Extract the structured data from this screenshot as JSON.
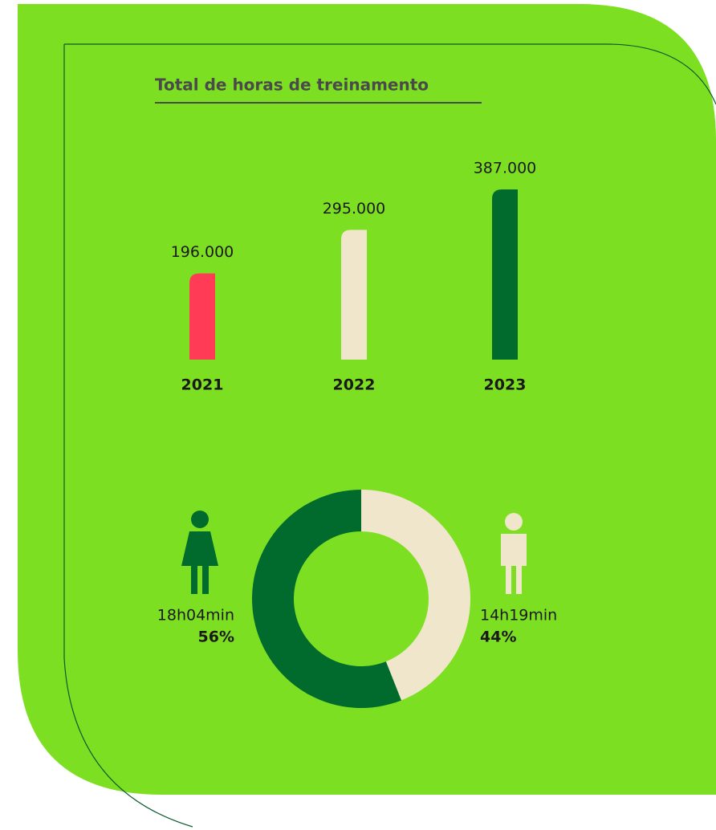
{
  "chart_data": [
    {
      "type": "bar",
      "title": "Total de horas de treinamento",
      "categories": [
        "2021",
        "2022",
        "2023"
      ],
      "values": [
        196000,
        295000,
        387000
      ],
      "value_labels": [
        "196.000",
        "295.000",
        "387.000"
      ],
      "colors": [
        "#ff3b55",
        "#f0e6cc",
        "#006b2d"
      ]
    },
    {
      "type": "donut",
      "categories": [
        "18h04min",
        "14h19min"
      ],
      "values": [
        56,
        44
      ],
      "value_labels": [
        "56%",
        "44%"
      ],
      "colors": [
        "#006b2d",
        "#f0e6cc"
      ]
    }
  ]
}
